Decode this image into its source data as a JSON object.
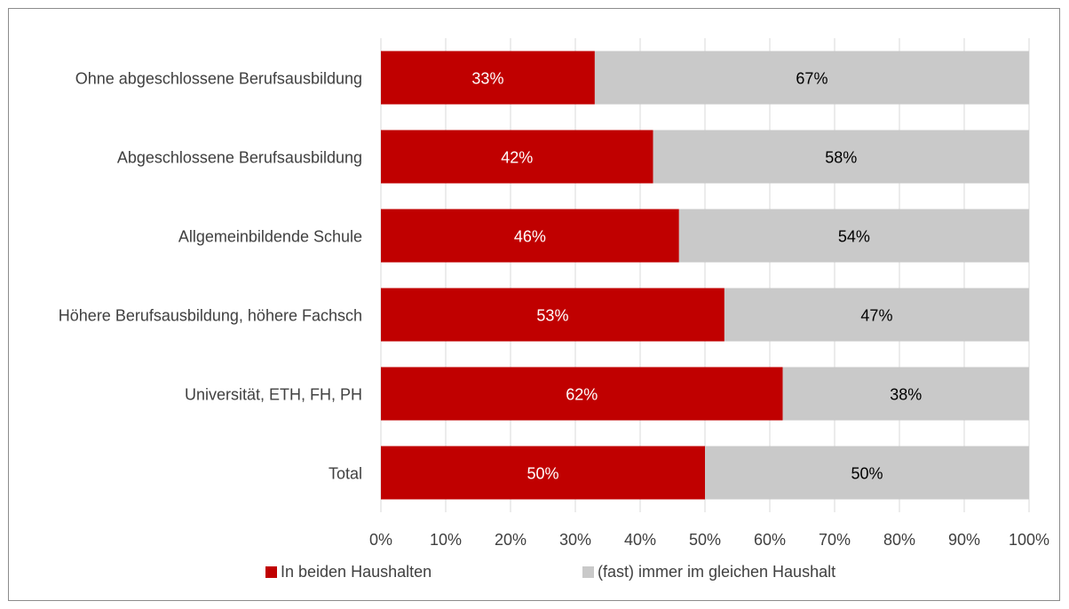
{
  "chart_data": {
    "type": "bar",
    "orientation": "horizontal",
    "stacked": "percent",
    "title": "",
    "xlabel": "",
    "ylabel": "",
    "categories": [
      "Ohne abgeschlossene Berufsausbildung",
      "Abgeschlossene Berufsausbildung",
      "Allgemeinbildende Schule",
      "Höhere Berufsausbildung, höhere Fachsch",
      "Universität, ETH, FH, PH",
      "Total"
    ],
    "series": [
      {
        "name": "In beiden Haushalten",
        "color": "#c00000",
        "label_color": "#ffffff",
        "values": [
          33,
          42,
          46,
          53,
          62,
          50
        ],
        "labels": [
          "33%",
          "42%",
          "46%",
          "53%",
          "62%",
          "50%"
        ]
      },
      {
        "name": "(fast) immer im gleichen Haushalt",
        "color": "#c9c9c9",
        "label_color": "#000000",
        "values": [
          67,
          58,
          54,
          47,
          38,
          50
        ],
        "labels": [
          "67%",
          "58%",
          "54%",
          "47%",
          "38%",
          "50%"
        ]
      }
    ],
    "xlim": [
      0,
      100
    ],
    "x_ticks": [
      "0%",
      "10%",
      "20%",
      "30%",
      "40%",
      "50%",
      "60%",
      "70%",
      "80%",
      "90%",
      "100%"
    ],
    "grid": "vertical",
    "grid_color": "#d9d9d9",
    "legend_position": "bottom"
  }
}
